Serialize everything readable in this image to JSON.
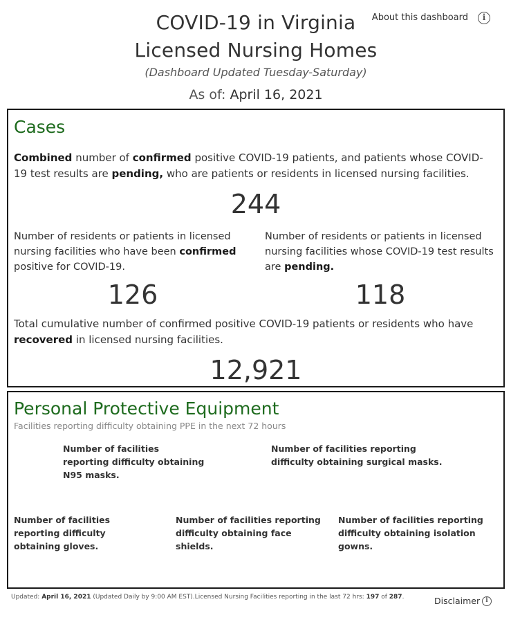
{
  "header": {
    "title_line1": "COVID-19 in Virginia",
    "title_line2": "Licensed Nursing Homes",
    "subtitle": "(Dashboard Updated Tuesday-Saturday)",
    "as_of_label": "As of:",
    "as_of_date": "April 16, 2021",
    "about_link": "About this dashboard",
    "about_icon": "info-icon"
  },
  "cases": {
    "title": "Cases",
    "combined": {
      "t1": "Combined",
      "t2": " number of ",
      "t3": "confirmed",
      "t4": " positive COVID-19 patients, and patients whose COVID-19 test results are ",
      "t5": "pending,",
      "t6": " who are patients or residents in licensed nursing facilities.",
      "value": "244"
    },
    "confirmed": {
      "t1": "Number of residents or patients in licensed nursing facilities who have been ",
      "t2": "confirmed",
      "t3": " positive for COVID-19.",
      "value": "126"
    },
    "pending": {
      "t1": "Number of residents or patients in licensed nursing facilities whose COVID-19 test results are ",
      "t2": "pending.",
      "value": "118"
    },
    "recovered": {
      "t1": "Total cumulative number of confirmed positive COVID-19 patients or residents who have ",
      "t2": "recovered",
      "t3": " in licensed nursing facilities.",
      "value": "12,921"
    }
  },
  "ppe": {
    "title": "Personal Protective Equipment",
    "subtitle": "Facilities reporting difficulty obtaining PPE in the next 72 hours",
    "n95": "Number of facilities reporting difficulty obtaining N95 masks.",
    "surgical": "Number of facilities reporting difficulty obtaining surgical masks.",
    "gloves": "Number of facilities reporting difficulty obtaining gloves.",
    "face_shields": "Number of facilities reporting difficulty obtaining face shields.",
    "gowns": "Number of facilities reporting difficulty obtaining isolation gowns."
  },
  "footer": {
    "updated_label": "Updated: ",
    "updated_date": "April 16, 2021",
    "updated_note": " (Updated Daily by 9:00 AM EST).Licensed Nursing Facilities reporting in the last 72 hrs: ",
    "reporting_count": "197",
    "of_text": " of ",
    "total_count": "287",
    "period": ".",
    "disclaimer": "Disclaimer",
    "disclaimer_icon": "info-icon"
  },
  "colors": {
    "section_title": "#1e6b1e",
    "text": "#333333",
    "border": "#1a1a1a"
  }
}
